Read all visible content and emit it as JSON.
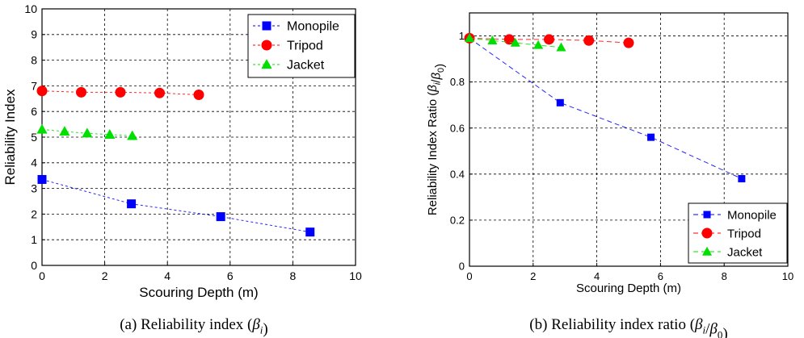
{
  "chart_data": [
    {
      "type": "line",
      "x_range": [
        0,
        10
      ],
      "y_range": [
        0,
        10
      ],
      "x_ticks": [
        "0",
        "2",
        "4",
        "6",
        "8",
        "10"
      ],
      "y_ticks": [
        "0",
        "1",
        "2",
        "3",
        "4",
        "5",
        "6",
        "7",
        "8",
        "9",
        "10"
      ],
      "xlabel": "Scouring Depth (m)",
      "ylabel": "Reliability Index",
      "caption": "(a)  Reliability  index  (βi)",
      "grid": true,
      "legend_position": "top-right",
      "series": [
        {
          "name": "Monopile",
          "color": "#0000ff",
          "marker": "square",
          "x": [
            0,
            2.85,
            5.7,
            8.55
          ],
          "y": [
            3.35,
            2.4,
            1.9,
            1.3
          ]
        },
        {
          "name": "Tripod",
          "color": "#ff0000",
          "marker": "circle",
          "x": [
            0,
            1.25,
            2.5,
            3.75,
            5.0
          ],
          "y": [
            6.8,
            6.75,
            6.75,
            6.72,
            6.65
          ]
        },
        {
          "name": "Jacket",
          "color": "#00e000",
          "marker": "triangle",
          "x": [
            0,
            0.72,
            1.44,
            2.16,
            2.88
          ],
          "y": [
            5.3,
            5.22,
            5.15,
            5.1,
            5.05
          ]
        }
      ]
    },
    {
      "type": "line",
      "x_range": [
        0,
        10
      ],
      "y_range": [
        0,
        1.1
      ],
      "x_ticks": [
        "0",
        "2",
        "4",
        "6",
        "8",
        "10"
      ],
      "y_ticks": [
        "0",
        "0.2",
        "0.4",
        "0.6",
        "0.8",
        "1"
      ],
      "xlabel": "Scouring Depth (m)",
      "ylabel": "Reliability Index Ratio (βi/β0)",
      "caption": "(b)  Reliability  index  ratio  (βi/β0)",
      "grid": true,
      "legend_position": "bottom-right",
      "series": [
        {
          "name": "Monopile",
          "color": "#0000ff",
          "marker": "square",
          "x": [
            0,
            2.85,
            5.7,
            8.55
          ],
          "y": [
            0.99,
            0.71,
            0.56,
            0.38
          ]
        },
        {
          "name": "Tripod",
          "color": "#ff0000",
          "marker": "circle",
          "x": [
            0,
            1.25,
            2.5,
            3.75,
            5.0
          ],
          "y": [
            0.99,
            0.985,
            0.985,
            0.98,
            0.97
          ]
        },
        {
          "name": "Jacket",
          "color": "#00e000",
          "marker": "triangle",
          "x": [
            0,
            0.72,
            1.44,
            2.16,
            2.88
          ],
          "y": [
            0.99,
            0.98,
            0.97,
            0.96,
            0.95
          ]
        }
      ]
    }
  ]
}
